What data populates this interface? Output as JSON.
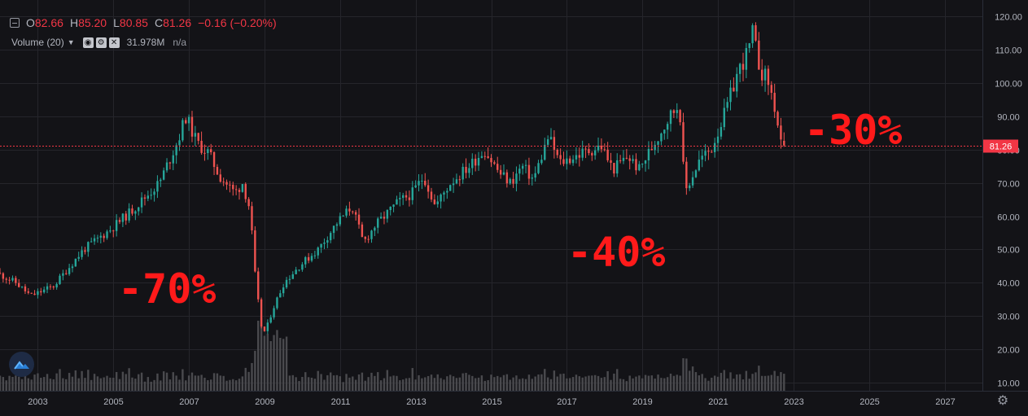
{
  "legend": {
    "o_label": "O",
    "o_value": "82.66",
    "h_label": "H",
    "h_value": "85.20",
    "l_label": "L",
    "l_value": "80.85",
    "c_label": "C",
    "c_value": "81.26",
    "change": "−0.16 (−0.20%)"
  },
  "volume_indicator": {
    "title": "Volume (20)",
    "value": "31.978M",
    "ma_value": "n/a"
  },
  "annotations": [
    "-70%",
    "-40%",
    "-30%"
  ],
  "last_price_label": "81.26",
  "colors": {
    "up": "#26a69a",
    "down": "#ef5350",
    "annotation": "#ff1a1a",
    "price_line": "#f23645",
    "volume": "#4a4a4e",
    "background": "#131317",
    "grid": "#25252b"
  },
  "icons": [
    "collapse-icon",
    "chevron-down-icon",
    "eye-icon",
    "settings-icon",
    "close-icon",
    "logo-icon",
    "gear-icon"
  ],
  "chart_data": {
    "type": "candlestick",
    "interval": "monthly",
    "y_ticks": [
      "10.00",
      "20.00",
      "30.00",
      "40.00",
      "50.00",
      "60.00",
      "70.00",
      "80.00",
      "90.00",
      "100.00",
      "110.00",
      "120.00"
    ],
    "x_ticks": [
      "2003",
      "2005",
      "2007",
      "2009",
      "2011",
      "2013",
      "2015",
      "2017",
      "2019",
      "2021",
      "2023",
      "2025",
      "2027"
    ],
    "ylim": [
      7.5,
      125
    ],
    "xlim": [
      2002.0,
      2028.0
    ],
    "grid": true,
    "close_anchors": [
      [
        2002.0,
        43
      ],
      [
        2002.5,
        40
      ],
      [
        2002.9,
        36
      ],
      [
        2003.5,
        39
      ],
      [
        2004.3,
        50
      ],
      [
        2005.0,
        56
      ],
      [
        2005.6,
        62
      ],
      [
        2006.3,
        70
      ],
      [
        2006.8,
        83
      ],
      [
        2007.0,
        90
      ],
      [
        2007.3,
        82
      ],
      [
        2007.6,
        79
      ],
      [
        2007.9,
        72
      ],
      [
        2008.3,
        67
      ],
      [
        2008.5,
        70
      ],
      [
        2008.7,
        62
      ],
      [
        2008.85,
        40
      ],
      [
        2009.0,
        27
      ],
      [
        2009.1,
        25
      ],
      [
        2009.3,
        32
      ],
      [
        2009.6,
        40
      ],
      [
        2010.0,
        45
      ],
      [
        2010.5,
        50
      ],
      [
        2011.0,
        58
      ],
      [
        2011.4,
        63
      ],
      [
        2011.7,
        52
      ],
      [
        2012.0,
        57
      ],
      [
        2012.6,
        64
      ],
      [
        2013.0,
        67
      ],
      [
        2013.3,
        72
      ],
      [
        2013.6,
        63
      ],
      [
        2014.0,
        70
      ],
      [
        2014.5,
        75
      ],
      [
        2014.9,
        80
      ],
      [
        2015.3,
        73
      ],
      [
        2015.6,
        70
      ],
      [
        2015.9,
        75
      ],
      [
        2016.2,
        71
      ],
      [
        2016.6,
        84
      ],
      [
        2016.9,
        76
      ],
      [
        2017.5,
        79
      ],
      [
        2018.0,
        81
      ],
      [
        2018.3,
        74
      ],
      [
        2018.7,
        78
      ],
      [
        2019.0,
        74
      ],
      [
        2019.3,
        80
      ],
      [
        2019.8,
        90
      ],
      [
        2020.0,
        93
      ],
      [
        2020.1,
        90
      ],
      [
        2020.2,
        67
      ],
      [
        2020.4,
        72
      ],
      [
        2020.6,
        77
      ],
      [
        2020.9,
        80
      ],
      [
        2021.3,
        92
      ],
      [
        2021.6,
        103
      ],
      [
        2021.9,
        110
      ],
      [
        2022.0,
        115
      ],
      [
        2022.2,
        104
      ],
      [
        2022.4,
        101
      ],
      [
        2022.6,
        92
      ],
      [
        2022.75,
        81.26
      ]
    ],
    "last_candle": {
      "open": 82.66,
      "high": 85.2,
      "low": 80.85,
      "close": 81.26
    },
    "volume_scale_max_price_units": 22
  }
}
